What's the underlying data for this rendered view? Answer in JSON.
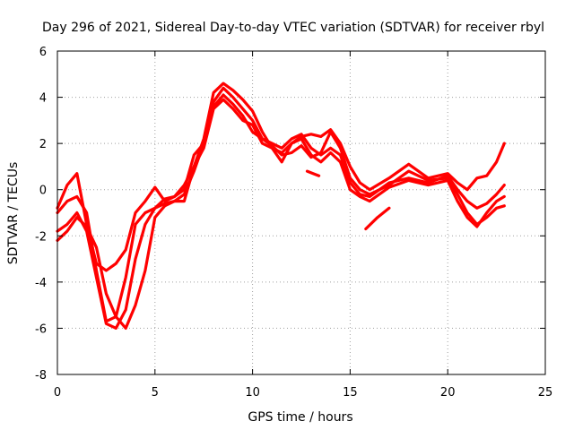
{
  "chart_data": {
    "type": "scatter",
    "title": "Day 296 of 2021, Sidereal Day-to-day VTEC variation (SDTVAR) for receiver rbyl",
    "xlabel": "GPS time / hours",
    "ylabel": "SDTVAR / TECUs",
    "xlim": [
      0,
      25
    ],
    "ylim": [
      -8,
      6
    ],
    "xticks": [
      "0",
      "5",
      "10",
      "15",
      "20",
      "25"
    ],
    "yticks": [
      "-8",
      "-6",
      "-4",
      "-2",
      "0",
      "2",
      "4",
      "6"
    ],
    "grid": true,
    "marker": "plus",
    "color": "#ff0000",
    "series": [
      {
        "x": [
          0.0,
          0.5,
          1.0,
          1.5,
          2.0,
          2.5,
          3.0,
          3.5,
          4.0,
          4.5,
          5.0,
          5.5,
          6.0,
          6.5,
          7.0,
          7.5,
          8.0,
          8.5,
          9.0,
          9.5,
          10.0,
          10.5,
          11.0,
          11.5,
          12.0,
          12.5,
          13.0,
          13.5,
          14.0,
          14.5,
          15.0,
          15.5,
          16.0,
          17.0,
          18.0,
          19.0,
          20.0,
          20.5,
          21.0,
          21.5,
          22.0,
          22.5,
          22.9
        ],
        "y": [
          -0.8,
          0.2,
          0.7,
          -1.5,
          -3.2,
          -3.5,
          -3.2,
          -2.6,
          -1.0,
          -0.5,
          0.1,
          -0.5,
          -0.3,
          0.2,
          1.0,
          2.2,
          4.2,
          4.6,
          4.3,
          3.9,
          3.4,
          2.5,
          1.8,
          1.2,
          2.0,
          2.3,
          2.4,
          2.3,
          2.6,
          2.0,
          1.0,
          0.3,
          0.0,
          0.5,
          1.1,
          0.5,
          0.7,
          0.3,
          0.0,
          0.5,
          0.6,
          1.2,
          2.0
        ]
      },
      {
        "x": [
          0.0,
          0.5,
          1.0,
          1.5,
          2.0,
          2.5,
          3.0,
          3.5,
          4.0,
          4.5,
          5.0,
          5.5,
          6.0,
          6.5,
          7.0,
          7.5,
          8.0,
          8.5,
          9.0,
          9.5,
          10.0,
          10.5,
          11.0,
          11.5,
          12.0,
          12.5,
          13.0,
          13.5,
          14.0,
          14.5,
          15.0,
          15.5,
          16.0,
          17.0,
          18.0,
          19.0,
          20.0,
          20.5,
          21.0,
          21.5,
          22.0,
          22.5,
          22.9
        ],
        "y": [
          -1.0,
          -0.5,
          -0.3,
          -1.0,
          -3.5,
          -5.7,
          -5.5,
          -3.8,
          -1.5,
          -1.0,
          -0.8,
          -0.6,
          -0.5,
          -0.2,
          0.8,
          2.0,
          3.8,
          4.4,
          4.0,
          3.5,
          3.0,
          2.2,
          1.9,
          1.5,
          1.6,
          1.9,
          1.4,
          1.6,
          2.5,
          1.8,
          0.5,
          0.0,
          -0.2,
          0.2,
          0.8,
          0.4,
          0.5,
          -0.2,
          -1.0,
          -1.5,
          -1.2,
          -0.8,
          -0.7
        ]
      },
      {
        "x": [
          0.0,
          0.5,
          1.0,
          1.5,
          2.0,
          2.5,
          3.0,
          3.5,
          4.0,
          4.5,
          5.0,
          5.5,
          6.0,
          6.5,
          7.0,
          7.5,
          8.0,
          8.5,
          9.0,
          9.5,
          10.0,
          10.5,
          11.0,
          11.5,
          12.0,
          12.5,
          13.0,
          13.5,
          14.0,
          14.5,
          15.0,
          15.5,
          16.0,
          17.0,
          18.0,
          19.0,
          20.0,
          20.5,
          21.0,
          21.5,
          22.0,
          22.5,
          22.9
        ],
        "y": [
          -1.8,
          -1.5,
          -1.0,
          -1.8,
          -3.8,
          -5.8,
          -6.0,
          -5.2,
          -3.0,
          -1.5,
          -0.8,
          -0.4,
          -0.3,
          0.0,
          1.5,
          2.0,
          3.6,
          4.1,
          3.7,
          3.2,
          2.5,
          2.2,
          2.0,
          1.8,
          2.2,
          2.4,
          1.8,
          1.5,
          1.8,
          1.5,
          0.3,
          -0.2,
          -0.3,
          0.3,
          0.5,
          0.3,
          0.6,
          0.0,
          -0.5,
          -0.8,
          -0.6,
          -0.2,
          0.2
        ]
      },
      {
        "x": [
          0.0,
          0.5,
          1.0,
          1.5,
          2.0,
          2.5,
          3.0,
          3.5,
          4.0,
          4.5,
          5.0,
          5.5,
          6.0,
          6.5,
          7.0,
          7.5,
          8.0,
          8.5,
          9.0,
          9.5,
          10.0,
          10.5,
          11.0,
          11.5,
          12.0,
          12.5,
          13.0,
          13.5,
          14.0,
          14.5,
          15.0,
          15.5,
          16.0,
          17.0,
          18.0,
          19.0,
          20.0,
          20.5,
          21.0,
          21.5,
          22.0,
          22.5,
          22.9
        ],
        "y": [
          -2.2,
          -1.8,
          -1.2,
          -1.6,
          -2.5,
          -4.5,
          -5.5,
          -6.0,
          -5.0,
          -3.5,
          -1.2,
          -0.7,
          -0.5,
          -0.5,
          1.0,
          1.8,
          3.5,
          3.9,
          3.5,
          3.0,
          2.8,
          2.0,
          1.8,
          1.6,
          2.0,
          2.2,
          1.5,
          1.2,
          1.6,
          1.2,
          0.0,
          -0.3,
          -0.5,
          0.1,
          0.4,
          0.2,
          0.4,
          -0.5,
          -1.2,
          -1.6,
          -1.0,
          -0.5,
          -0.3
        ]
      },
      {
        "x": [
          12.8,
          13.1,
          13.4
        ],
        "y": [
          0.8,
          0.7,
          0.6
        ]
      },
      {
        "x": [
          15.8,
          16.4,
          17.0
        ],
        "y": [
          -1.7,
          -1.2,
          -0.8
        ]
      }
    ]
  }
}
